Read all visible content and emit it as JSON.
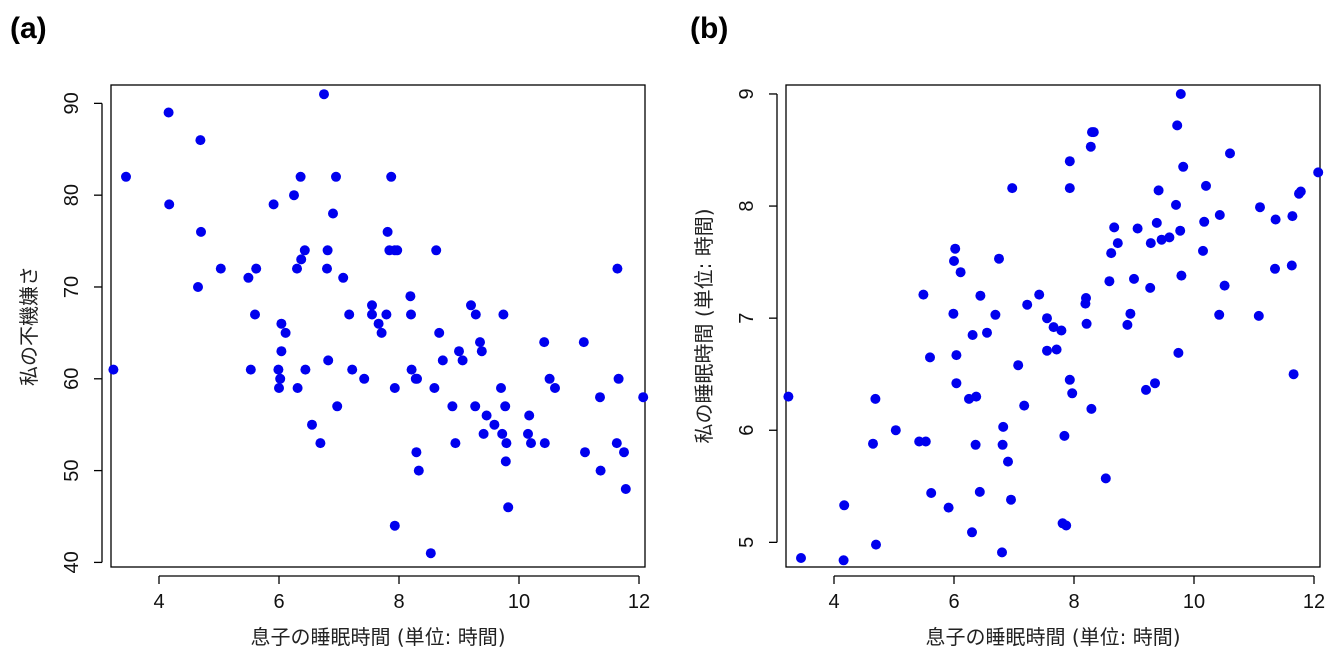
{
  "chart_data": [
    {
      "panel": "(a)",
      "type": "scatter",
      "xlabel": "息子の睡眠時間 (単位: 時間)",
      "ylabel": "私の不機嫌さ",
      "xlim": [
        3.2,
        12.1
      ],
      "ylim": [
        39.5,
        92
      ],
      "xticks": [
        4,
        6,
        8,
        10,
        12
      ],
      "yticks": [
        40,
        50,
        60,
        70,
        80,
        90
      ],
      "color": "#0000ee",
      "grid": false,
      "legend": "none",
      "x": [
        3.24,
        3.45,
        4.16,
        4.17,
        4.65,
        4.69,
        4.7,
        5.03,
        5.49,
        5.53,
        5.6,
        5.62,
        5.91,
        5.99,
        6.0,
        6.02,
        6.04,
        6.04,
        6.11,
        6.25,
        6.3,
        6.31,
        6.36,
        6.37,
        6.43,
        6.44,
        6.55,
        6.69,
        6.75,
        6.8,
        6.81,
        6.82,
        6.9,
        6.95,
        6.97,
        7.07,
        7.17,
        7.22,
        7.42,
        7.55,
        7.55,
        7.66,
        7.71,
        7.79,
        7.81,
        7.84,
        7.87,
        7.93,
        7.93,
        7.93,
        7.97,
        8.19,
        8.2,
        8.21,
        8.28,
        8.29,
        8.3,
        8.33,
        8.53,
        8.59,
        8.62,
        8.67,
        8.73,
        8.89,
        8.94,
        9.0,
        9.06,
        9.2,
        9.27,
        9.28,
        9.35,
        9.38,
        9.41,
        9.46,
        9.59,
        9.7,
        9.72,
        9.74,
        9.77,
        9.78,
        9.79,
        9.82,
        10.15,
        10.17,
        10.2,
        10.42,
        10.43,
        10.51,
        10.6,
        11.08,
        11.1,
        11.35,
        11.36,
        11.63,
        11.64,
        11.66,
        11.75,
        11.78,
        12.07
      ],
      "y": [
        61,
        82,
        89,
        79,
        70,
        86,
        76,
        72,
        71,
        61,
        67,
        72,
        79,
        61,
        59,
        60,
        66,
        63,
        65,
        80,
        72,
        59,
        82,
        73,
        74,
        61,
        55,
        53,
        91,
        72,
        74,
        62,
        78,
        82,
        57,
        71,
        67,
        61,
        60,
        68,
        67,
        66,
        65,
        67,
        76,
        74,
        82,
        74,
        59,
        44,
        74,
        69,
        67,
        61,
        60,
        52,
        60,
        50,
        41,
        59,
        74,
        65,
        62,
        57,
        53,
        63,
        62,
        68,
        57,
        67,
        64,
        63,
        54,
        56,
        55,
        59,
        54,
        67,
        57,
        51,
        53,
        46,
        54,
        56,
        53,
        64,
        53,
        60,
        59,
        64,
        52,
        58,
        50,
        53,
        72,
        60,
        52,
        48,
        58
      ]
    },
    {
      "panel": "(b)",
      "type": "scatter",
      "xlabel": "息子の睡眠時間 (単位: 時間)",
      "ylabel": "私の睡眠時間 (単位: 時間)",
      "xlim": [
        3.2,
        12.1
      ],
      "ylim": [
        4.78,
        9.08
      ],
      "xticks": [
        4,
        6,
        8,
        10,
        12
      ],
      "yticks": [
        5,
        6,
        7,
        8,
        9
      ],
      "color": "#0000ee",
      "grid": false,
      "legend": "none",
      "x": [
        3.24,
        3.45,
        4.16,
        4.17,
        4.65,
        4.69,
        4.7,
        5.03,
        5.42,
        5.49,
        5.53,
        5.6,
        5.62,
        5.91,
        5.99,
        6.0,
        6.02,
        6.04,
        6.04,
        6.11,
        6.25,
        6.3,
        6.31,
        6.36,
        6.37,
        6.43,
        6.44,
        6.55,
        6.69,
        6.75,
        6.8,
        6.81,
        6.82,
        6.9,
        6.95,
        6.97,
        7.07,
        7.17,
        7.22,
        7.42,
        7.55,
        7.55,
        7.66,
        7.71,
        7.79,
        7.81,
        7.84,
        7.87,
        7.93,
        7.93,
        7.93,
        7.97,
        8.19,
        8.2,
        8.21,
        8.28,
        8.29,
        8.3,
        8.33,
        8.53,
        8.59,
        8.62,
        8.67,
        8.73,
        8.89,
        8.94,
        9.0,
        9.06,
        9.2,
        9.27,
        9.28,
        9.35,
        9.38,
        9.41,
        9.46,
        9.59,
        9.7,
        9.72,
        9.74,
        9.77,
        9.78,
        9.79,
        9.82,
        10.15,
        10.17,
        10.2,
        10.42,
        10.43,
        10.51,
        10.6,
        11.08,
        11.1,
        11.35,
        11.36,
        11.63,
        11.64,
        11.66,
        11.75,
        11.78,
        12.07
      ],
      "y": [
        6.3,
        4.86,
        4.84,
        5.33,
        5.88,
        6.28,
        4.98,
        6.0,
        5.9,
        7.21,
        5.9,
        6.65,
        5.44,
        5.31,
        7.04,
        7.51,
        7.62,
        6.42,
        6.67,
        7.41,
        6.28,
        5.09,
        6.85,
        5.87,
        6.3,
        5.45,
        7.2,
        6.87,
        7.03,
        7.53,
        4.91,
        5.87,
        6.03,
        5.72,
        5.38,
        8.16,
        6.58,
        6.22,
        7.12,
        7.21,
        7.0,
        6.71,
        6.92,
        6.72,
        6.89,
        5.17,
        5.95,
        5.15,
        6.45,
        8.16,
        8.4,
        6.33,
        7.13,
        7.18,
        6.95,
        8.53,
        6.19,
        8.66,
        8.66,
        5.57,
        7.33,
        7.58,
        7.81,
        7.67,
        6.94,
        7.04,
        7.35,
        7.8,
        6.36,
        7.27,
        7.67,
        6.42,
        7.85,
        8.14,
        7.7,
        7.72,
        8.01,
        8.72,
        6.69,
        7.78,
        9.0,
        7.38,
        8.35,
        7.6,
        7.86,
        8.18,
        7.03,
        7.92,
        7.29,
        8.47,
        7.02,
        7.99,
        7.44,
        7.88,
        7.47,
        7.91,
        6.5,
        8.11,
        8.13,
        8.3
      ]
    }
  ]
}
